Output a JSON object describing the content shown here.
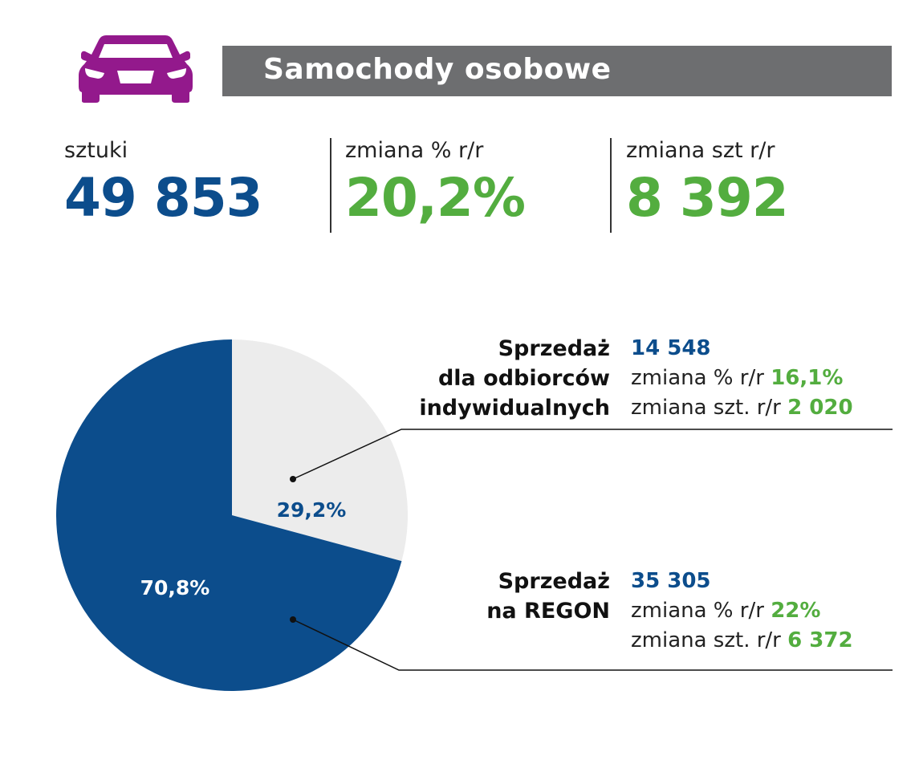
{
  "header": {
    "title": "Samochody osobowe",
    "icon": "car-icon",
    "icon_color": "#93198c",
    "bar_color": "#6d6e70"
  },
  "stats": [
    {
      "label": "sztuki",
      "value": "49 853",
      "color": "#0c4d8c"
    },
    {
      "label": "zmiana % r/r",
      "value": "20,2%",
      "color": "#53ad3f"
    },
    {
      "label": "zmiana szt r/r",
      "value": "8 392",
      "color": "#53ad3f"
    }
  ],
  "chart_data": {
    "type": "pie",
    "categories": [
      "Sprzedaż dla odbiorców indywidualnych",
      "Sprzedaż na REGON"
    ],
    "values": [
      29.2,
      70.8
    ],
    "data_labels": [
      "29,2%",
      "70,8%"
    ],
    "colors": [
      "#ececec",
      "#0c4d8c"
    ],
    "label_colors": [
      "#0c4d8c",
      "#ffffff"
    ]
  },
  "segments": [
    {
      "title_lines": [
        "Sprzedaż",
        "dla odbiorców",
        "indywidualnych"
      ],
      "count": "14 548",
      "pct_label": "zmiana % r/r",
      "pct_value": "16,1%",
      "szt_label": "zmiana szt. r/r",
      "szt_value": "2 020"
    },
    {
      "title_lines": [
        "Sprzedaż",
        "na REGON"
      ],
      "count": "35 305",
      "pct_label": "zmiana % r/r",
      "pct_value": "22%",
      "szt_label": "zmiana szt. r/r",
      "szt_value": "6 372"
    }
  ]
}
